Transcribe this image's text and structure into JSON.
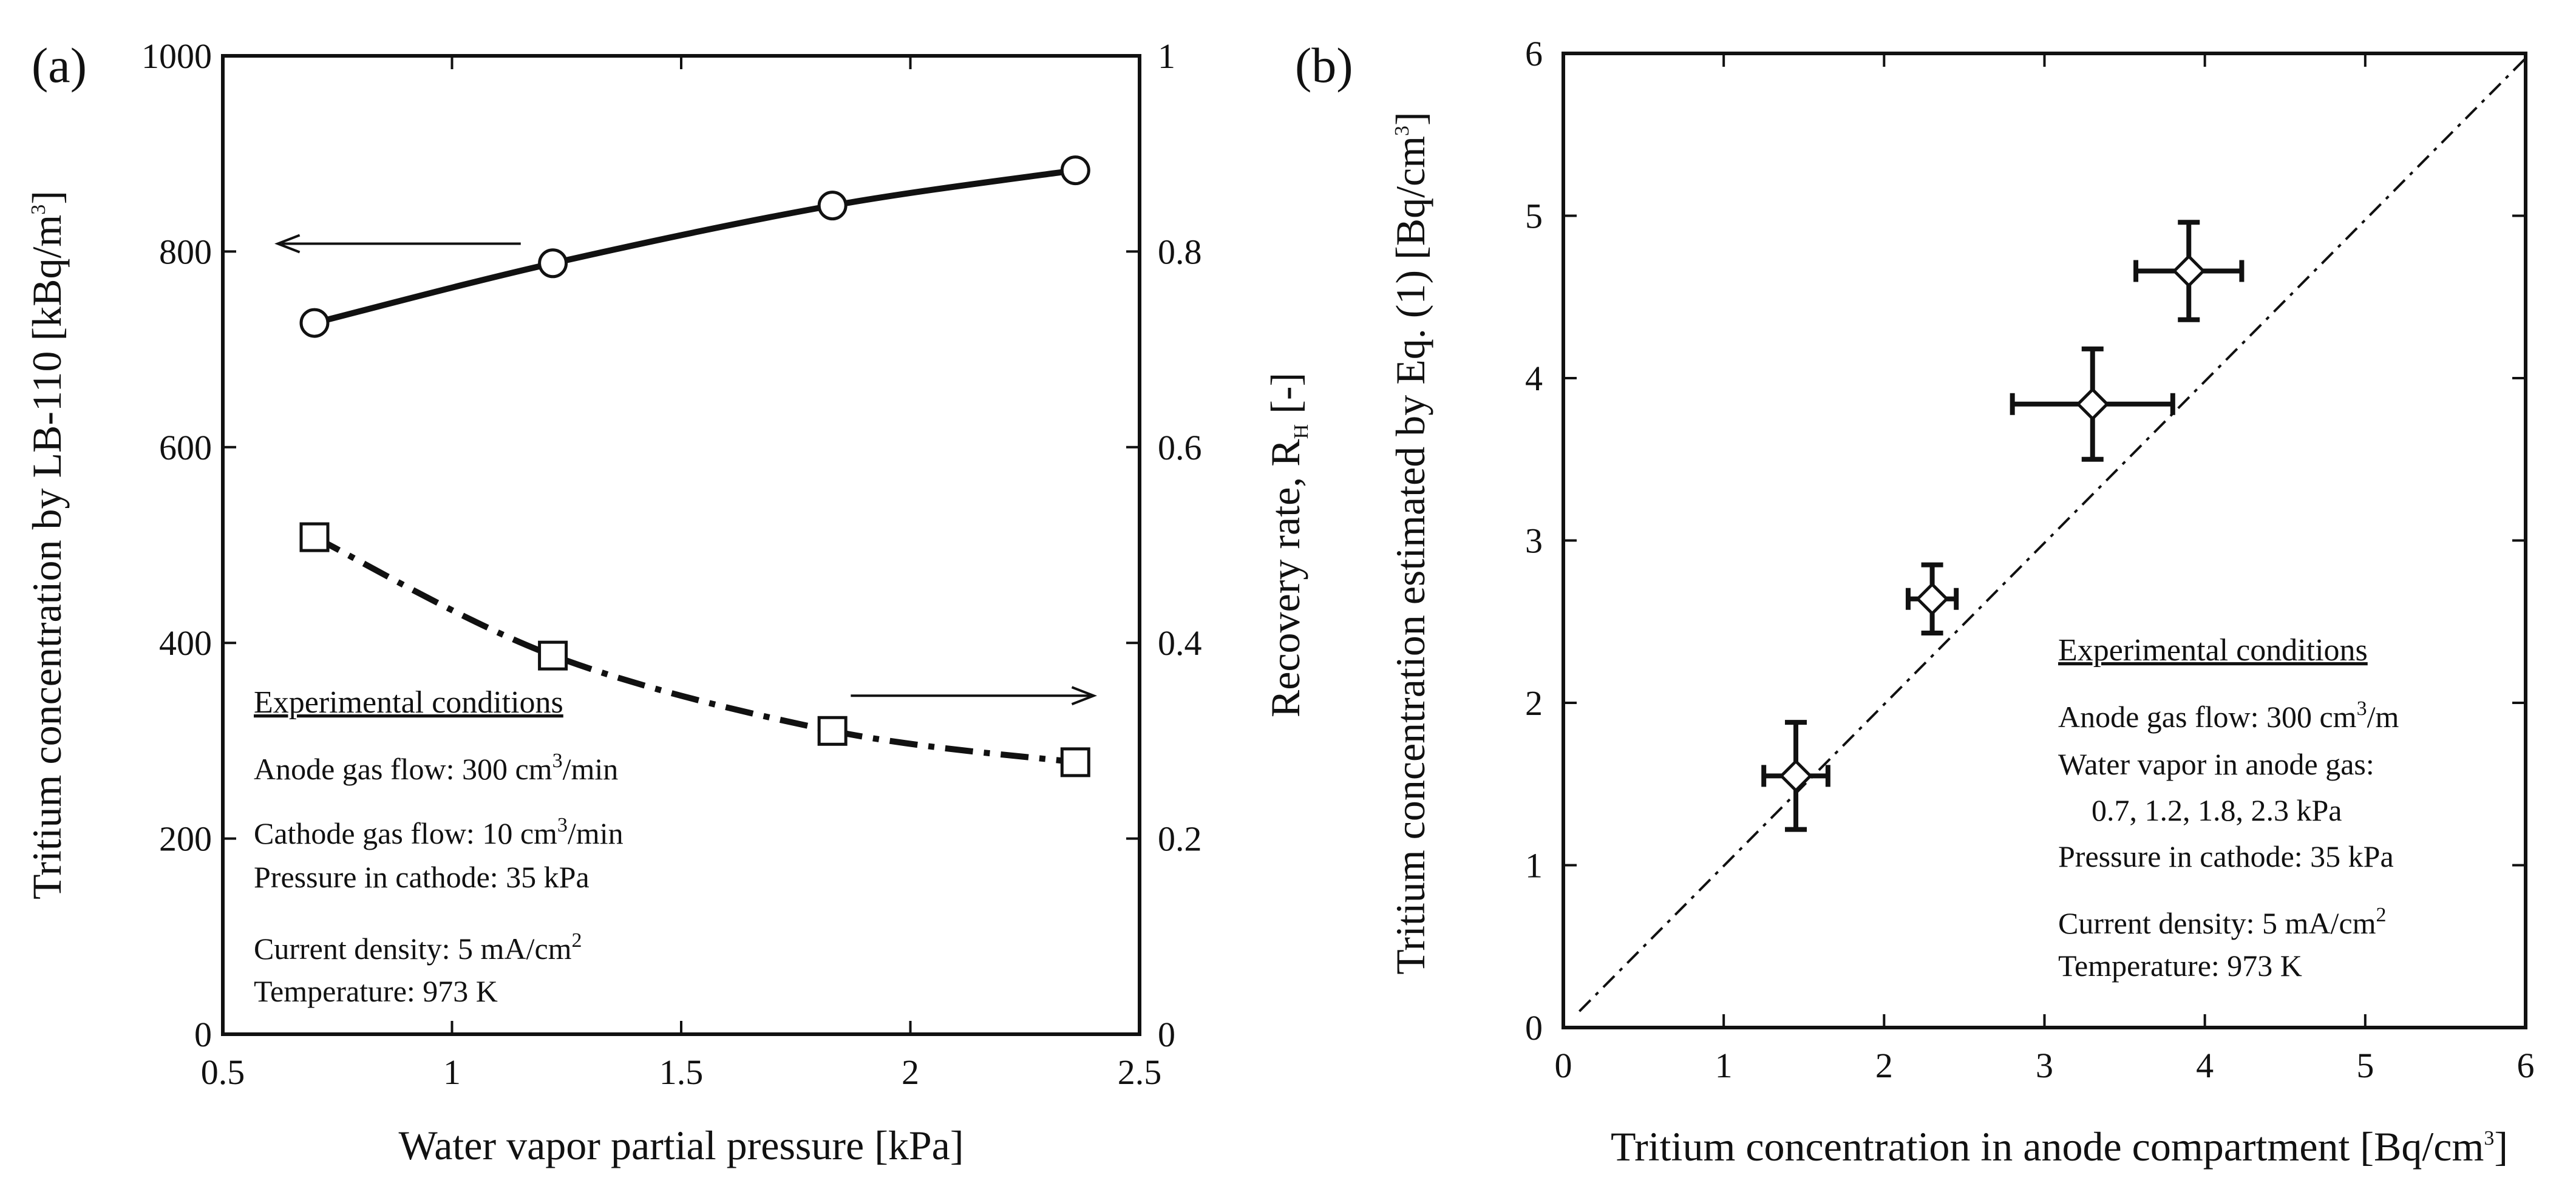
{
  "colors": {
    "ink": "#111111",
    "background": "#ffffff",
    "marker_fill": "#ffffff"
  },
  "chart_data": [
    {
      "type": "line",
      "panel": "(a)",
      "xlabel": "Water vapor partial pressure [kPa]",
      "ylabel_left": "Tritium concentration by LB-110 [kBq/m",
      "ylabel_left_sup": "3",
      "ylabel_left_end": "]",
      "ylabel_right": "Recovery rate, R",
      "ylabel_right_sub": "H",
      "ylabel_right_end": " [-]",
      "xlim": [
        0.5,
        2.5
      ],
      "ylim_left": [
        0,
        1000
      ],
      "ylim_right": [
        0,
        1
      ],
      "xticks": [
        0.5,
        1,
        1.5,
        2,
        2.5
      ],
      "xtick_labels": [
        "0.5",
        "1",
        "1.5",
        "2",
        "2.5"
      ],
      "yticks_left": [
        0,
        200,
        400,
        600,
        800,
        1000
      ],
      "ytick_labels_left": [
        "0",
        "200",
        "400",
        "600",
        "800",
        "1000"
      ],
      "yticks_right": [
        0,
        0.2,
        0.4,
        0.6,
        0.8,
        1
      ],
      "ytick_labels_right": [
        "0",
        "0.2",
        "0.4",
        "0.6",
        "0.8",
        "1"
      ],
      "series": [
        {
          "name": "Tritium concentration",
          "axis": "left",
          "marker": "circle",
          "line": "solid",
          "x": [
            0.7,
            1.22,
            1.83,
            2.36
          ],
          "y": [
            727,
            788,
            847,
            883
          ]
        },
        {
          "name": "Recovery rate",
          "axis": "right",
          "marker": "square",
          "line": "dash-dot",
          "x": [
            0.7,
            1.22,
            1.83,
            2.36
          ],
          "y": [
            0.508,
            0.387,
            0.31,
            0.278
          ]
        }
      ],
      "arrows": [
        {
          "points_to": "left axis",
          "y_axis": "left",
          "y": 808,
          "x_from": 1.15,
          "x_to": 0.62
        },
        {
          "points_to": "right axis",
          "y_axis": "right",
          "y": 0.346,
          "x_from": 1.87,
          "x_to": 2.4
        }
      ],
      "conditions": {
        "title": "Experimental conditions",
        "lines": [
          {
            "text": "Anode gas flow: 300 cm",
            "sup": "3",
            "end": "/min"
          },
          {
            "text": "Cathode gas flow: 10 cm",
            "sup": "3",
            "end": "/min"
          },
          {
            "text": "Pressure in cathode: 35 kPa",
            "sup": "",
            "end": ""
          },
          {
            "text": "Current density: 5 mA/cm",
            "sup": "2",
            "end": ""
          },
          {
            "text": "Temperature: 973 K",
            "sup": "",
            "end": ""
          }
        ]
      }
    },
    {
      "type": "scatter",
      "panel": "(b)",
      "xlabel": "Tritium concentration in anode compartment [Bq/cm",
      "xlabel_sup": "3",
      "xlabel_end": "]",
      "ylabel": "Tritium concentration estimated by Eq. (1) [Bq/cm",
      "ylabel_sup": "3",
      "ylabel_end": "]",
      "xlim": [
        0,
        6
      ],
      "ylim": [
        0,
        6
      ],
      "xticks": [
        0,
        1,
        2,
        3,
        4,
        5,
        6
      ],
      "xtick_labels": [
        "0",
        "1",
        "2",
        "3",
        "4",
        "5",
        "6"
      ],
      "yticks": [
        0,
        1,
        2,
        3,
        4,
        5,
        6
      ],
      "ytick_labels": [
        "0",
        "1",
        "2",
        "3",
        "4",
        "5",
        "6"
      ],
      "points": [
        {
          "x": 1.45,
          "y": 1.55,
          "xerr": 0.2,
          "yerr": 0.33
        },
        {
          "x": 2.3,
          "y": 2.64,
          "xerr": 0.15,
          "yerr": 0.21
        },
        {
          "x": 3.3,
          "y": 3.84,
          "xerr": 0.5,
          "yerr": 0.34
        },
        {
          "x": 3.9,
          "y": 4.66,
          "xerr": 0.33,
          "yerr": 0.3
        }
      ],
      "reference_line": {
        "style": "dash-dot",
        "x": [
          0.1,
          6
        ],
        "y": [
          0.1,
          5.97
        ]
      },
      "conditions": {
        "title": "Experimental conditions",
        "lines": [
          {
            "text": "Anode gas flow: 300 cm",
            "sup": "3",
            "end": "/m"
          },
          {
            "text": "Water vapor in anode gas:",
            "sup": "",
            "end": ""
          },
          {
            "text": "0.7, 1.2, 1.8, 2.3 kPa",
            "sup": "",
            "end": ""
          },
          {
            "text": "Pressure in cathode: 35 kPa",
            "sup": "",
            "end": ""
          },
          {
            "text": "Current density: 5 mA/cm",
            "sup": "2",
            "end": ""
          },
          {
            "text": "Temperature: 973 K",
            "sup": "",
            "end": ""
          }
        ]
      }
    }
  ]
}
